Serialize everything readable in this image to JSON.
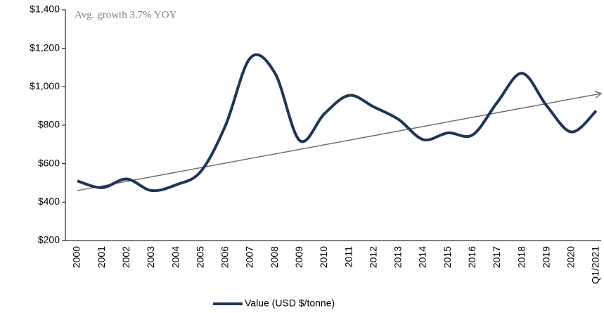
{
  "chart_data": {
    "type": "line",
    "annotation": "Avg. growth 3.7% YOY",
    "categories": [
      "2000",
      "2001",
      "2002",
      "2003",
      "2004",
      "2005",
      "2006",
      "2007",
      "2008",
      "2009",
      "2010",
      "2011",
      "2012",
      "2013",
      "2014",
      "2015",
      "2016",
      "2017",
      "2018",
      "2019",
      "2020",
      "Q1/2021"
    ],
    "series": [
      {
        "name": "Value (USD $/tonne)",
        "color": "#1f3556",
        "values": [
          510,
          475,
          520,
          460,
          490,
          560,
          800,
          1150,
          1070,
          720,
          860,
          955,
          895,
          830,
          725,
          760,
          750,
          920,
          1070,
          900,
          765,
          875
        ]
      }
    ],
    "trendline": {
      "start": 460,
      "end": 965,
      "color": "#707070"
    },
    "ylim": [
      200,
      1400
    ],
    "yticks": [
      {
        "value": 200,
        "label": "$200"
      },
      {
        "value": 400,
        "label": "$400"
      },
      {
        "value": 600,
        "label": "$600"
      },
      {
        "value": 800,
        "label": "$800"
      },
      {
        "value": 1000,
        "label": "$1,000"
      },
      {
        "value": 1200,
        "label": "$1,200"
      },
      {
        "value": 1400,
        "label": "$1,400"
      }
    ],
    "grid": false,
    "legend": "bottom"
  }
}
